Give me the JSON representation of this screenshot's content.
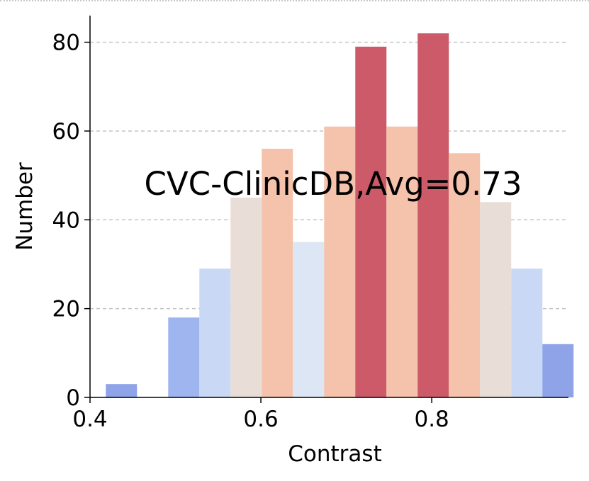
{
  "chart_data": {
    "type": "bar",
    "title": "",
    "xlabel": "Contrast",
    "ylabel": "Number",
    "annotation": "CVC-ClinicDB,Avg=0.73",
    "xlim": [
      0.4,
      0.96
    ],
    "ylim": [
      0,
      86
    ],
    "xticks": [
      0.4,
      0.6,
      0.8
    ],
    "xtick_labels": [
      "0.4",
      "0.6",
      "0.8"
    ],
    "yticks": [
      0,
      20,
      40,
      60,
      80
    ],
    "ytick_labels": [
      "0",
      "20",
      "40",
      "60",
      "80"
    ],
    "grid": "y-dashed",
    "bin_width": 0.0365,
    "bins": [
      {
        "x": 0.4185,
        "value": 3,
        "color": "#8ea3e8"
      },
      {
        "x": 0.4915,
        "value": 18,
        "color": "#9fb5ef"
      },
      {
        "x": 0.528,
        "value": 29,
        "color": "#c8d8f5"
      },
      {
        "x": 0.5645,
        "value": 45,
        "color": "#e9ded7"
      },
      {
        "x": 0.601,
        "value": 56,
        "color": "#f5c2ab"
      },
      {
        "x": 0.6375,
        "value": 35,
        "color": "#dde6f4"
      },
      {
        "x": 0.674,
        "value": 61,
        "color": "#f5c2ab"
      },
      {
        "x": 0.7105,
        "value": 79,
        "color": "#cc5a68"
      },
      {
        "x": 0.747,
        "value": 61,
        "color": "#f5c2ab"
      },
      {
        "x": 0.7835,
        "value": 82,
        "color": "#cc5a68"
      },
      {
        "x": 0.82,
        "value": 55,
        "color": "#f5c2ab"
      },
      {
        "x": 0.8565,
        "value": 44,
        "color": "#e9ded7"
      },
      {
        "x": 0.893,
        "value": 29,
        "color": "#c8d8f5"
      },
      {
        "x": 0.9295,
        "value": 12,
        "color": "#8ea3e8"
      }
    ]
  }
}
